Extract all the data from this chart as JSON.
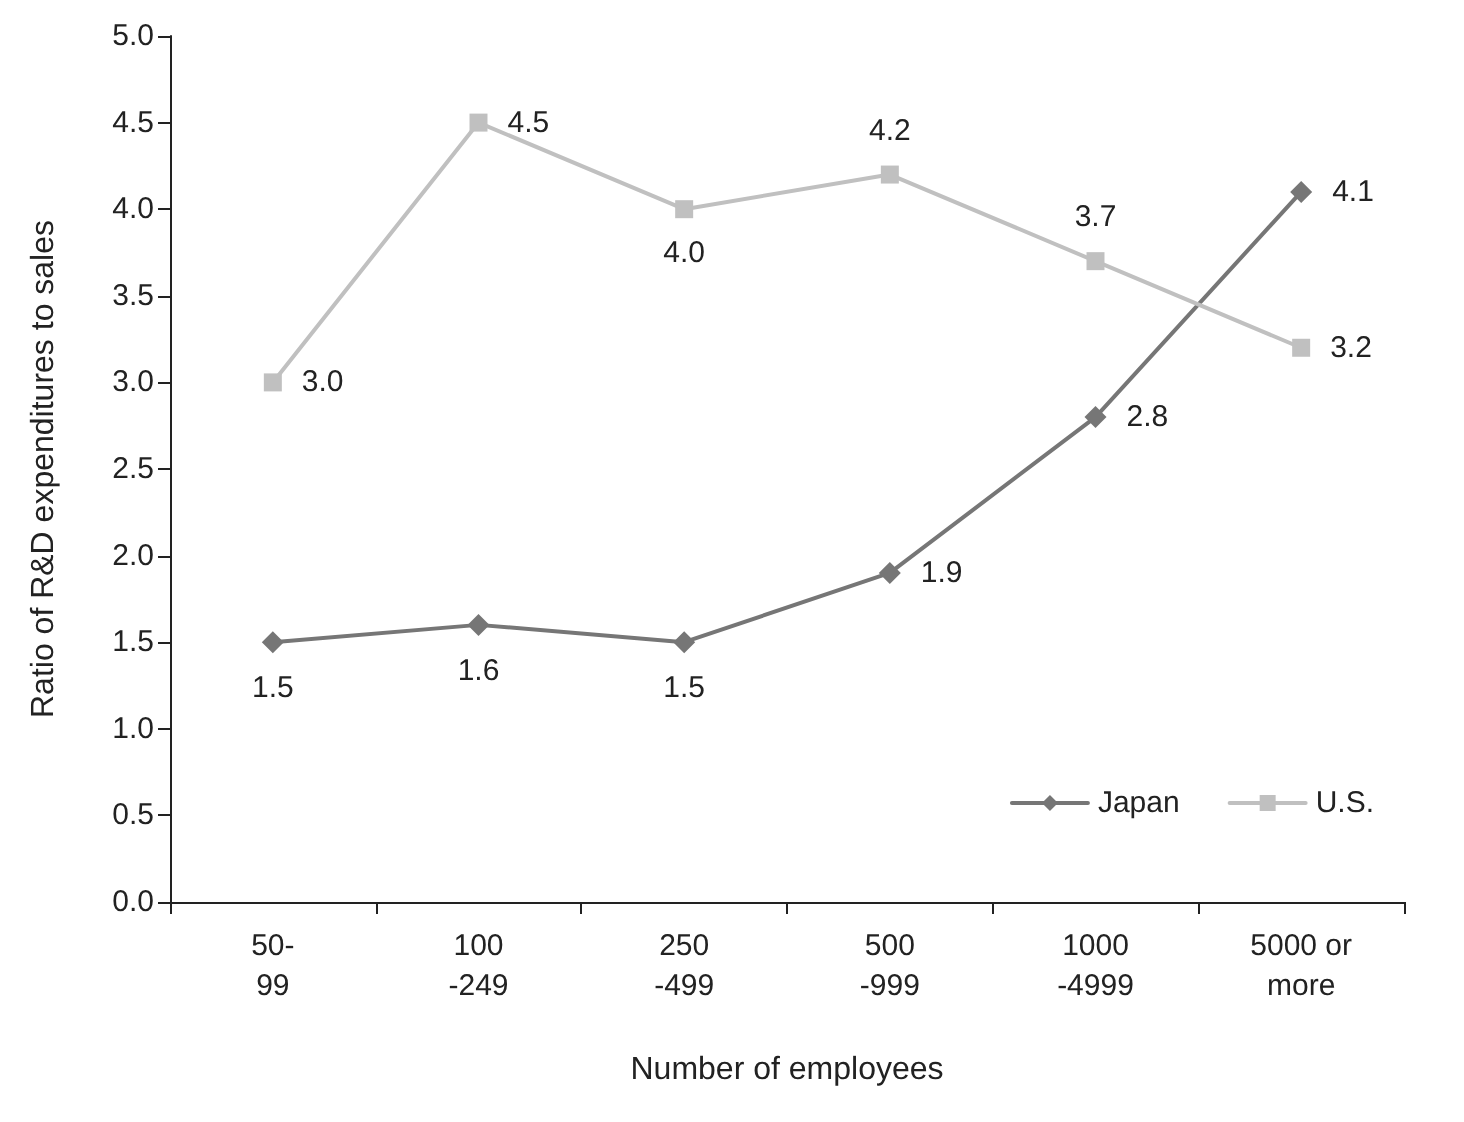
{
  "chart_data": {
    "type": "line",
    "xlabel": "Number of employees",
    "ylabel": "Ratio of R&D expenditures to sales",
    "categories": [
      "50-\n99",
      "100\n-249",
      "250\n-499",
      "500\n-999",
      "1000\n-4999",
      "5000 or\nmore"
    ],
    "series": [
      {
        "name": "Japan",
        "color": "#767676",
        "marker": "diamond",
        "values": [
          1.5,
          1.6,
          1.5,
          1.9,
          2.8,
          4.1
        ],
        "value_labels": [
          "1.5",
          "1.6",
          "1.5",
          "1.9",
          "2.8",
          "4.1"
        ]
      },
      {
        "name": "U.S.",
        "color": "#c0c0c0",
        "marker": "square",
        "values": [
          3.0,
          4.5,
          4.0,
          4.2,
          3.7,
          3.2
        ],
        "value_labels": [
          "3.0",
          "4.5",
          "4.0",
          "4.2",
          "3.7",
          "3.2"
        ]
      }
    ],
    "ylim": [
      0,
      5
    ],
    "yticks": [
      "0.0",
      "0.5",
      "1.0",
      "1.5",
      "2.0",
      "2.5",
      "3.0",
      "3.5",
      "4.0",
      "4.5",
      "5.0"
    ],
    "legend": "bottom right",
    "grid": false,
    "line_style": "solid"
  }
}
